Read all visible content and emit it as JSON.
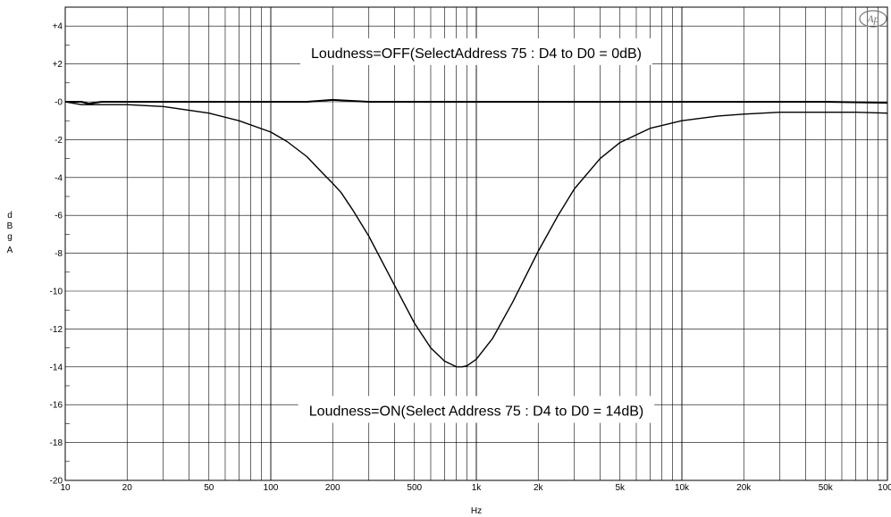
{
  "chart_data": {
    "type": "line",
    "title": "",
    "xlabel": "Hz",
    "ylabel_lines": [
      "d",
      "B",
      "g",
      "",
      "A"
    ],
    "x_scale": "log",
    "xlim": [
      10,
      100000
    ],
    "ylim": [
      -20,
      5
    ],
    "grid": true,
    "legend": "none",
    "x_tick_labels": [
      {
        "value": 10,
        "label": "10"
      },
      {
        "value": 20,
        "label": "20"
      },
      {
        "value": 50,
        "label": "50"
      },
      {
        "value": 100,
        "label": "100"
      },
      {
        "value": 200,
        "label": "200"
      },
      {
        "value": 500,
        "label": "500"
      },
      {
        "value": 1000,
        "label": "1k"
      },
      {
        "value": 2000,
        "label": "2k"
      },
      {
        "value": 5000,
        "label": "5k"
      },
      {
        "value": 10000,
        "label": "10k"
      },
      {
        "value": 20000,
        "label": "20k"
      },
      {
        "value": 50000,
        "label": "50k"
      },
      {
        "value": 100000,
        "label": "100k"
      }
    ],
    "y_tick_labels": [
      {
        "value": 4,
        "label": "+4"
      },
      {
        "value": 2,
        "label": "+2"
      },
      {
        "value": 0,
        "label": "-0"
      },
      {
        "value": -2,
        "label": "-2"
      },
      {
        "value": -4,
        "label": "-4"
      },
      {
        "value": -6,
        "label": "-6"
      },
      {
        "value": -8,
        "label": "-8"
      },
      {
        "value": -10,
        "label": "-10"
      },
      {
        "value": -12,
        "label": "-12"
      },
      {
        "value": -14,
        "label": "-14"
      },
      {
        "value": -16,
        "label": "-16"
      },
      {
        "value": -18,
        "label": "-18"
      },
      {
        "value": -20,
        "label": "-20"
      }
    ],
    "series": [
      {
        "color": "#000000",
        "x": [
          10,
          12,
          13,
          15,
          20,
          30,
          50,
          100,
          150,
          200,
          300,
          400,
          500,
          600,
          700,
          800,
          900,
          1000,
          1500,
          2000,
          3000,
          5000,
          10000,
          20000,
          50000,
          100000
        ],
        "y": [
          0,
          0,
          -0.1,
          0,
          0,
          0,
          0,
          0,
          0,
          0.1,
          0,
          0,
          0,
          0,
          0,
          0,
          0,
          0,
          0,
          0,
          0,
          0,
          0,
          0,
          0,
          -0.05
        ]
      },
      {
        "color": "#000000",
        "x": [
          10,
          12,
          15,
          20,
          30,
          50,
          70,
          100,
          120,
          150,
          180,
          200,
          220,
          250,
          300,
          400,
          500,
          600,
          700,
          800,
          850,
          900,
          1000,
          1200,
          1500,
          2000,
          2500,
          3000,
          4000,
          5000,
          7000,
          10000,
          15000,
          20000,
          30000,
          50000,
          70000,
          100000
        ],
        "y": [
          0,
          -0.15,
          -0.15,
          -0.15,
          -0.25,
          -0.6,
          -1.0,
          -1.6,
          -2.1,
          -2.9,
          -3.8,
          -4.3,
          -4.8,
          -5.7,
          -7.1,
          -9.7,
          -11.7,
          -13.0,
          -13.7,
          -14.0,
          -14.0,
          -13.95,
          -13.6,
          -12.5,
          -10.6,
          -7.9,
          -6.0,
          -4.6,
          -3.0,
          -2.15,
          -1.4,
          -1.0,
          -0.75,
          -0.65,
          -0.55,
          -0.55,
          -0.55,
          -0.6
        ]
      }
    ],
    "annotations": [
      {
        "text": "Loudness=OFF(SelectAddress 75 : D4 to D0 = 0dB)",
        "x": 1000,
        "y": 2.6
      },
      {
        "text": "Loudness=ON(Select Address 75 : D4 to D0 = 14dB)",
        "x": 1000,
        "y": -16.3
      }
    ],
    "logo_text": "Ap"
  }
}
